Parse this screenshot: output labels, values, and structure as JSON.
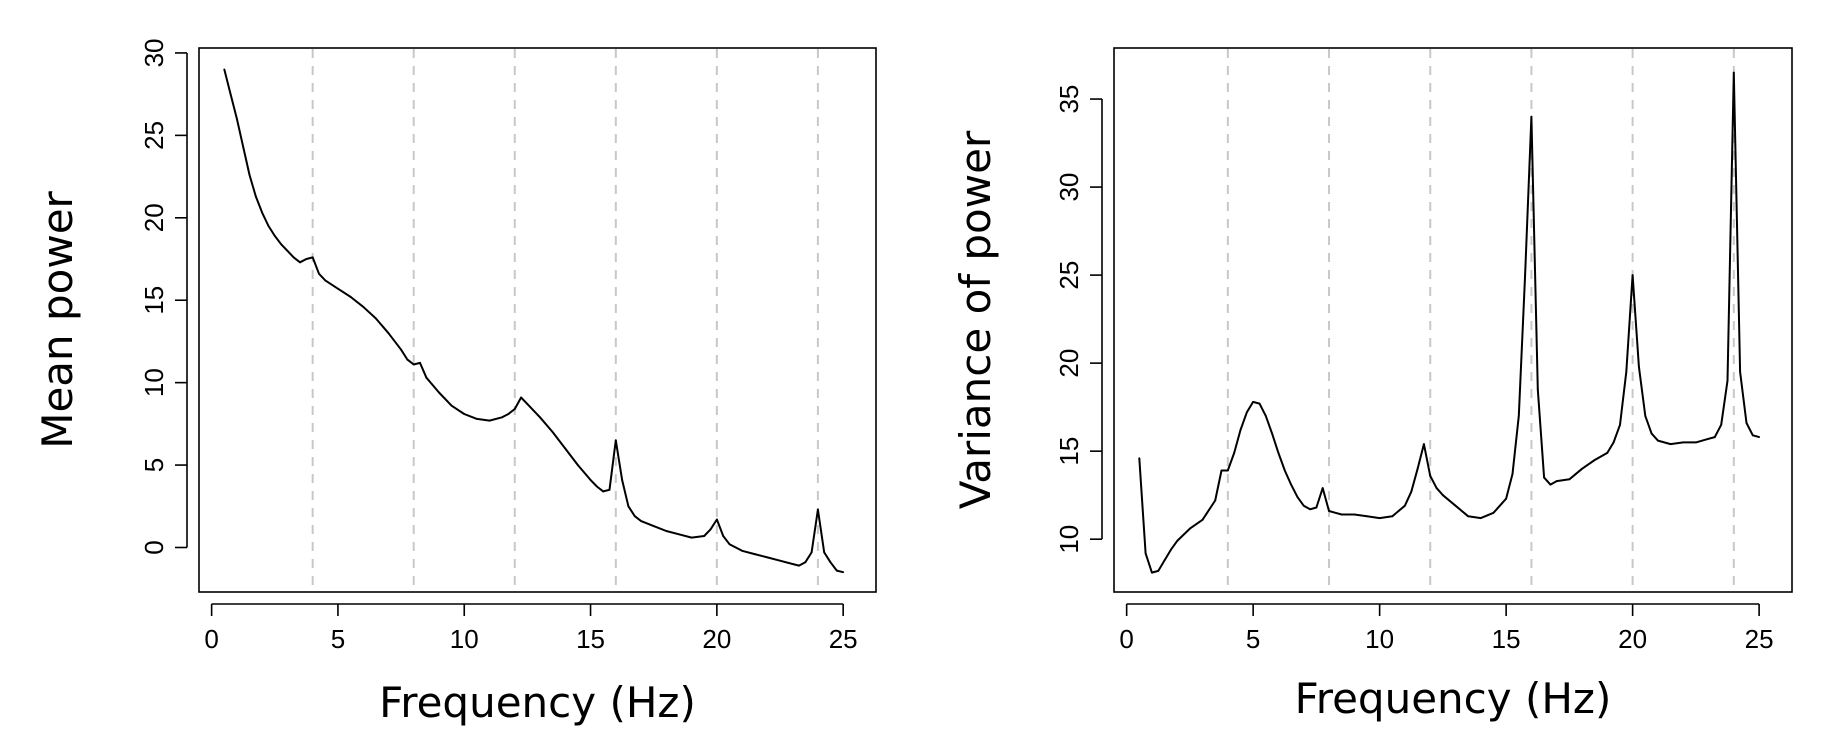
{
  "chart_data": [
    {
      "type": "line",
      "title": "",
      "xlabel": "Frequency (Hz)",
      "ylabel": "Mean power",
      "xlim": [
        -0.5,
        26.3
      ],
      "ylim": [
        -2.7,
        30.3
      ],
      "x_ticks": [
        0,
        5,
        10,
        15,
        20,
        25
      ],
      "y_ticks": [
        0,
        5,
        10,
        15,
        20,
        25,
        30
      ],
      "vlines": [
        4,
        8,
        12,
        16,
        20,
        24
      ],
      "vline_color": "#c8c8c8",
      "line_color": "#000000",
      "grid": false,
      "series": [
        {
          "x": [
            0.5,
            0.75,
            1.0,
            1.25,
            1.5,
            1.75,
            2.0,
            2.25,
            2.5,
            2.75,
            3.0,
            3.25,
            3.5,
            3.75,
            4.0,
            4.25,
            4.5,
            5.0,
            5.5,
            6.0,
            6.5,
            7.0,
            7.5,
            7.75,
            8.0,
            8.25,
            8.5,
            9.0,
            9.5,
            10.0,
            10.5,
            11.0,
            11.5,
            11.75,
            12.0,
            12.25,
            12.5,
            13.0,
            13.5,
            14.0,
            14.5,
            15.0,
            15.25,
            15.5,
            15.75,
            16.0,
            16.25,
            16.5,
            16.75,
            17.0,
            17.5,
            18.0,
            18.5,
            19.0,
            19.5,
            19.75,
            20.0,
            20.25,
            20.5,
            21.0,
            21.5,
            22.0,
            22.5,
            23.0,
            23.25,
            23.5,
            23.75,
            24.0,
            24.25,
            24.5,
            24.75,
            25.0
          ],
          "y": [
            29.0,
            27.5,
            26.0,
            24.3,
            22.6,
            21.3,
            20.3,
            19.5,
            18.9,
            18.4,
            18.0,
            17.6,
            17.3,
            17.5,
            17.6,
            16.6,
            16.2,
            15.7,
            15.2,
            14.6,
            13.9,
            13.0,
            12.0,
            11.4,
            11.1,
            11.2,
            10.3,
            9.4,
            8.6,
            8.1,
            7.8,
            7.7,
            7.9,
            8.1,
            8.4,
            9.1,
            8.7,
            7.9,
            7.0,
            6.0,
            5.0,
            4.1,
            3.7,
            3.4,
            3.5,
            6.5,
            4.1,
            2.5,
            1.9,
            1.6,
            1.3,
            1.0,
            0.8,
            0.6,
            0.7,
            1.1,
            1.7,
            0.7,
            0.2,
            -0.2,
            -0.4,
            -0.6,
            -0.8,
            -1.0,
            -1.1,
            -0.9,
            -0.3,
            2.3,
            -0.3,
            -0.9,
            -1.4,
            -1.5
          ]
        }
      ]
    },
    {
      "type": "line",
      "title": "",
      "xlabel": "Frequency (Hz)",
      "ylabel": "Variance of power",
      "xlim": [
        -0.5,
        26.3
      ],
      "ylim": [
        7.0,
        37.9
      ],
      "x_ticks": [
        0,
        5,
        10,
        15,
        20,
        25
      ],
      "y_ticks": [
        10,
        15,
        20,
        25,
        30,
        35
      ],
      "vlines": [
        4,
        8,
        12,
        16,
        20,
        24
      ],
      "vline_color": "#c8c8c8",
      "line_color": "#000000",
      "grid": false,
      "series": [
        {
          "x": [
            0.5,
            0.75,
            1.0,
            1.25,
            1.5,
            1.75,
            2.0,
            2.5,
            3.0,
            3.5,
            3.75,
            4.0,
            4.25,
            4.5,
            4.75,
            5.0,
            5.25,
            5.5,
            5.75,
            6.0,
            6.25,
            6.5,
            6.75,
            7.0,
            7.25,
            7.5,
            7.75,
            8.0,
            8.25,
            8.5,
            9.0,
            9.5,
            10.0,
            10.5,
            11.0,
            11.25,
            11.5,
            11.75,
            12.0,
            12.25,
            12.5,
            13.0,
            13.5,
            14.0,
            14.5,
            15.0,
            15.25,
            15.5,
            15.75,
            16.0,
            16.25,
            16.5,
            16.75,
            17.0,
            17.5,
            18.0,
            18.5,
            19.0,
            19.25,
            19.5,
            19.75,
            20.0,
            20.25,
            20.5,
            20.75,
            21.0,
            21.5,
            22.0,
            22.5,
            23.0,
            23.25,
            23.5,
            23.75,
            24.0,
            24.25,
            24.5,
            24.75,
            25.0
          ],
          "y": [
            14.6,
            9.2,
            8.1,
            8.2,
            8.8,
            9.4,
            9.9,
            10.6,
            11.1,
            12.2,
            13.9,
            13.9,
            14.9,
            16.2,
            17.2,
            17.8,
            17.7,
            17.0,
            16.0,
            14.9,
            13.9,
            13.1,
            12.4,
            11.9,
            11.7,
            11.8,
            12.9,
            11.6,
            11.5,
            11.4,
            11.4,
            11.3,
            11.2,
            11.3,
            11.9,
            12.7,
            14.0,
            15.4,
            13.6,
            12.9,
            12.5,
            11.9,
            11.3,
            11.2,
            11.5,
            12.3,
            13.7,
            17.0,
            25.0,
            34.0,
            18.5,
            13.5,
            13.1,
            13.3,
            13.4,
            14.0,
            14.5,
            14.9,
            15.5,
            16.5,
            19.5,
            25.0,
            19.8,
            17.0,
            16.0,
            15.6,
            15.4,
            15.5,
            15.5,
            15.7,
            15.8,
            16.5,
            19.0,
            36.5,
            19.5,
            16.6,
            15.9,
            15.8
          ]
        }
      ]
    }
  ]
}
